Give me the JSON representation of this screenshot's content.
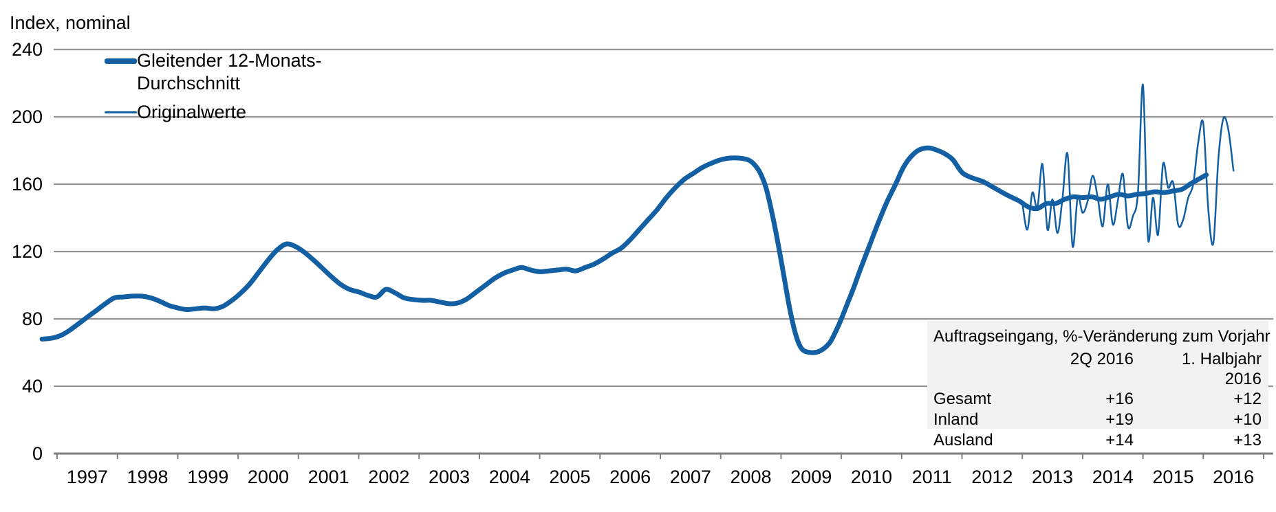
{
  "page": {
    "background": "#ffffff",
    "grid_color": "#929292",
    "axis_color": "#7f7f7f",
    "text_color": "#000000"
  },
  "chart_data": {
    "type": "line",
    "title": "Index, nominal",
    "xlabel": "",
    "ylabel": "Index, nominal",
    "ylim": [
      0,
      240
    ],
    "y_ticks": [
      0,
      40,
      80,
      120,
      160,
      200,
      240
    ],
    "x_years": [
      1997,
      1998,
      1999,
      2000,
      2001,
      2002,
      2003,
      2004,
      2005,
      2006,
      2007,
      2008,
      2009,
      2010,
      2011,
      2012,
      2013,
      2014,
      2015,
      2016
    ],
    "grid": "horizontal",
    "legend_position": "top-left",
    "series": [
      {
        "name": "Gleitender 12-Monats-Durchschnitt",
        "color": "#135fa3",
        "stroke_width": 7,
        "points": [
          [
            1996.75,
            68
          ],
          [
            1996.9,
            68.5
          ],
          [
            1997.05,
            70
          ],
          [
            1997.2,
            73
          ],
          [
            1997.35,
            77
          ],
          [
            1997.5,
            81
          ],
          [
            1997.65,
            85
          ],
          [
            1997.8,
            89
          ],
          [
            1997.95,
            92.5
          ],
          [
            1998.1,
            93
          ],
          [
            1998.25,
            93.5
          ],
          [
            1998.4,
            93.5
          ],
          [
            1998.55,
            92.5
          ],
          [
            1998.7,
            90.5
          ],
          [
            1998.85,
            88
          ],
          [
            1999.0,
            86.5
          ],
          [
            1999.15,
            85.5
          ],
          [
            1999.3,
            86
          ],
          [
            1999.45,
            86.5
          ],
          [
            1999.6,
            86
          ],
          [
            1999.75,
            87.5
          ],
          [
            1999.9,
            91
          ],
          [
            2000.05,
            95.5
          ],
          [
            2000.2,
            101
          ],
          [
            2000.35,
            108
          ],
          [
            2000.5,
            115
          ],
          [
            2000.65,
            121
          ],
          [
            2000.8,
            124.5
          ],
          [
            2000.95,
            123
          ],
          [
            2001.1,
            119.5
          ],
          [
            2001.25,
            115
          ],
          [
            2001.4,
            110
          ],
          [
            2001.55,
            105
          ],
          [
            2001.7,
            100.5
          ],
          [
            2001.85,
            97.5
          ],
          [
            2002.0,
            96
          ],
          [
            2002.15,
            94
          ],
          [
            2002.3,
            93
          ],
          [
            2002.45,
            97.5
          ],
          [
            2002.6,
            95.5
          ],
          [
            2002.75,
            92.5
          ],
          [
            2002.9,
            91.5
          ],
          [
            2003.05,
            91
          ],
          [
            2003.2,
            91
          ],
          [
            2003.35,
            90
          ],
          [
            2003.5,
            89
          ],
          [
            2003.65,
            89.5
          ],
          [
            2003.8,
            92
          ],
          [
            2003.95,
            96
          ],
          [
            2004.1,
            100
          ],
          [
            2004.25,
            104
          ],
          [
            2004.4,
            107
          ],
          [
            2004.55,
            109
          ],
          [
            2004.7,
            110.5
          ],
          [
            2004.85,
            109
          ],
          [
            2005.0,
            108
          ],
          [
            2005.15,
            108.5
          ],
          [
            2005.3,
            109
          ],
          [
            2005.45,
            109.5
          ],
          [
            2005.6,
            108.5
          ],
          [
            2005.75,
            110.5
          ],
          [
            2005.9,
            112.5
          ],
          [
            2006.05,
            115.5
          ],
          [
            2006.2,
            119
          ],
          [
            2006.35,
            122
          ],
          [
            2006.5,
            127
          ],
          [
            2006.65,
            133
          ],
          [
            2006.8,
            139
          ],
          [
            2006.95,
            145
          ],
          [
            2007.1,
            152
          ],
          [
            2007.25,
            158
          ],
          [
            2007.4,
            163
          ],
          [
            2007.55,
            166.5
          ],
          [
            2007.7,
            170
          ],
          [
            2007.85,
            172.5
          ],
          [
            2008.0,
            174.5
          ],
          [
            2008.15,
            175.5
          ],
          [
            2008.3,
            175.5
          ],
          [
            2008.45,
            174.5
          ],
          [
            2008.55,
            172
          ],
          [
            2008.65,
            167
          ],
          [
            2008.75,
            158
          ],
          [
            2008.85,
            143
          ],
          [
            2008.95,
            125
          ],
          [
            2009.05,
            105
          ],
          [
            2009.15,
            85
          ],
          [
            2009.25,
            70
          ],
          [
            2009.35,
            62
          ],
          [
            2009.5,
            60
          ],
          [
            2009.65,
            61
          ],
          [
            2009.8,
            65.5
          ],
          [
            2009.9,
            72
          ],
          [
            2010.0,
            80
          ],
          [
            2010.1,
            89
          ],
          [
            2010.2,
            98
          ],
          [
            2010.3,
            108
          ],
          [
            2010.45,
            122
          ],
          [
            2010.6,
            136
          ],
          [
            2010.75,
            149
          ],
          [
            2010.9,
            160
          ],
          [
            2011.0,
            168
          ],
          [
            2011.1,
            174
          ],
          [
            2011.2,
            178
          ],
          [
            2011.3,
            180.5
          ],
          [
            2011.45,
            181.5
          ],
          [
            2011.6,
            180
          ],
          [
            2011.72,
            178
          ],
          [
            2011.85,
            174.5
          ],
          [
            2012.0,
            167
          ],
          [
            2012.15,
            164
          ],
          [
            2012.35,
            161.5
          ],
          [
            2012.55,
            157.5
          ],
          [
            2012.75,
            153.5
          ],
          [
            2012.95,
            150
          ],
          [
            2013.1,
            146.5
          ],
          [
            2013.25,
            145.5
          ],
          [
            2013.4,
            148.5
          ],
          [
            2013.55,
            148.5
          ],
          [
            2013.7,
            151
          ],
          [
            2013.85,
            152.5
          ],
          [
            2014.0,
            152
          ],
          [
            2014.15,
            152.5
          ],
          [
            2014.3,
            151
          ],
          [
            2014.45,
            152.5
          ],
          [
            2014.6,
            154
          ],
          [
            2014.75,
            153
          ],
          [
            2014.9,
            154
          ],
          [
            2015.05,
            154.5
          ],
          [
            2015.2,
            155.5
          ],
          [
            2015.35,
            155
          ],
          [
            2015.5,
            156
          ],
          [
            2015.65,
            157
          ],
          [
            2015.8,
            160.5
          ],
          [
            2015.95,
            163.5
          ],
          [
            2016.05,
            165.5
          ]
        ]
      },
      {
        "name": "Originalwerte",
        "color": "#135fa3",
        "stroke_width": 2.5,
        "points": [
          [
            2013.0,
            149
          ],
          [
            2013.083,
            133
          ],
          [
            2013.167,
            155
          ],
          [
            2013.25,
            146
          ],
          [
            2013.333,
            172
          ],
          [
            2013.417,
            133
          ],
          [
            2013.5,
            151
          ],
          [
            2013.583,
            131
          ],
          [
            2013.667,
            152
          ],
          [
            2013.75,
            178
          ],
          [
            2013.833,
            123
          ],
          [
            2013.917,
            152
          ],
          [
            2014.0,
            143
          ],
          [
            2014.083,
            150
          ],
          [
            2014.167,
            165
          ],
          [
            2014.25,
            152
          ],
          [
            2014.333,
            135
          ],
          [
            2014.417,
            160
          ],
          [
            2014.5,
            136
          ],
          [
            2014.583,
            150
          ],
          [
            2014.667,
            166
          ],
          [
            2014.75,
            135
          ],
          [
            2014.833,
            141
          ],
          [
            2014.917,
            155
          ],
          [
            2015.0,
            219
          ],
          [
            2015.083,
            128
          ],
          [
            2015.167,
            152
          ],
          [
            2015.25,
            130
          ],
          [
            2015.333,
            172
          ],
          [
            2015.417,
            158
          ],
          [
            2015.5,
            161
          ],
          [
            2015.583,
            136
          ],
          [
            2015.667,
            139
          ],
          [
            2015.75,
            152
          ],
          [
            2015.833,
            160
          ],
          [
            2015.917,
            185
          ],
          [
            2016.0,
            196
          ],
          [
            2016.083,
            145
          ],
          [
            2016.167,
            125
          ],
          [
            2016.25,
            175
          ],
          [
            2016.333,
            199
          ],
          [
            2016.417,
            192
          ],
          [
            2016.5,
            168
          ]
        ]
      }
    ]
  },
  "info_table": {
    "title": "Auftragseingang, %-Veränderung zum Vorjahr",
    "columns": {
      "col1": "2Q 2016",
      "col2": "1. Halbjahr 2016"
    },
    "rows": [
      {
        "label": "Gesamt",
        "q2_2016": "+16",
        "h1_2016": "+12"
      },
      {
        "label": "Inland",
        "q2_2016": "+19",
        "h1_2016": "+10"
      },
      {
        "label": "Ausland",
        "q2_2016": "+14",
        "h1_2016": "+13"
      }
    ]
  }
}
